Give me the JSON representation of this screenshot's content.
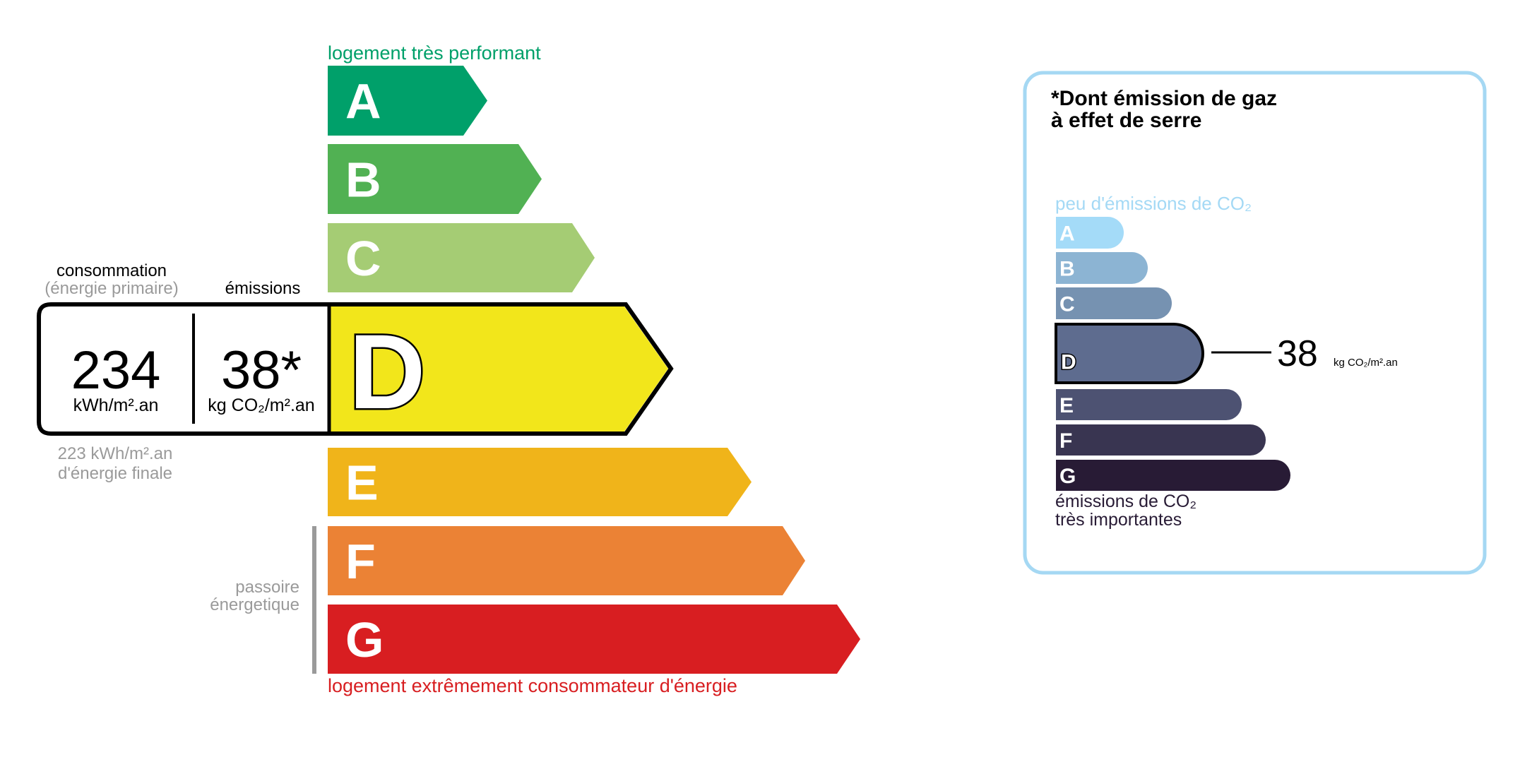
{
  "energy": {
    "top_label": "logement très performant",
    "bottom_label": "logement extrêmement consommateur d'énergie",
    "passoire_line1": "passoire",
    "passoire_line2": "énergetique",
    "consumption_header": "consommation",
    "consumption_sub": "(énergie primaire)",
    "emissions_header": "émissions",
    "consumption_value": "234",
    "consumption_unit": "kWh/m².an",
    "emissions_value": "38*",
    "emissions_unit": "kg CO₂/m².an",
    "final_value": "223 kWh/m².an",
    "final_label": "d'énergie finale",
    "current_class": "D",
    "classes": [
      {
        "letter": "A",
        "color": "#00a06a"
      },
      {
        "letter": "B",
        "color": "#51b153"
      },
      {
        "letter": "C",
        "color": "#a5cc74"
      },
      {
        "letter": "D",
        "color": "#f2e61b"
      },
      {
        "letter": "E",
        "color": "#f0b41a"
      },
      {
        "letter": "F",
        "color": "#eb8235"
      },
      {
        "letter": "G",
        "color": "#d81e21"
      }
    ]
  },
  "ghg": {
    "title_line1": "*Dont émission de gaz",
    "title_line2": "à effet de serre",
    "top_label": "peu d'émissions de CO₂",
    "bottom_line1": "émissions de CO₂",
    "bottom_line2": "très importantes",
    "current_class": "D",
    "value": "38",
    "unit": "kg CO₂/m².an",
    "classes": [
      {
        "letter": "A",
        "color": "#a4dbf8"
      },
      {
        "letter": "B",
        "color": "#8cb4d3"
      },
      {
        "letter": "C",
        "color": "#7692b1"
      },
      {
        "letter": "D",
        "color": "#5e6c8f"
      },
      {
        "letter": "E",
        "color": "#4d5272"
      },
      {
        "letter": "F",
        "color": "#393551"
      },
      {
        "letter": "G",
        "color": "#281b35"
      }
    ],
    "border_color": "#a5d8f3"
  }
}
